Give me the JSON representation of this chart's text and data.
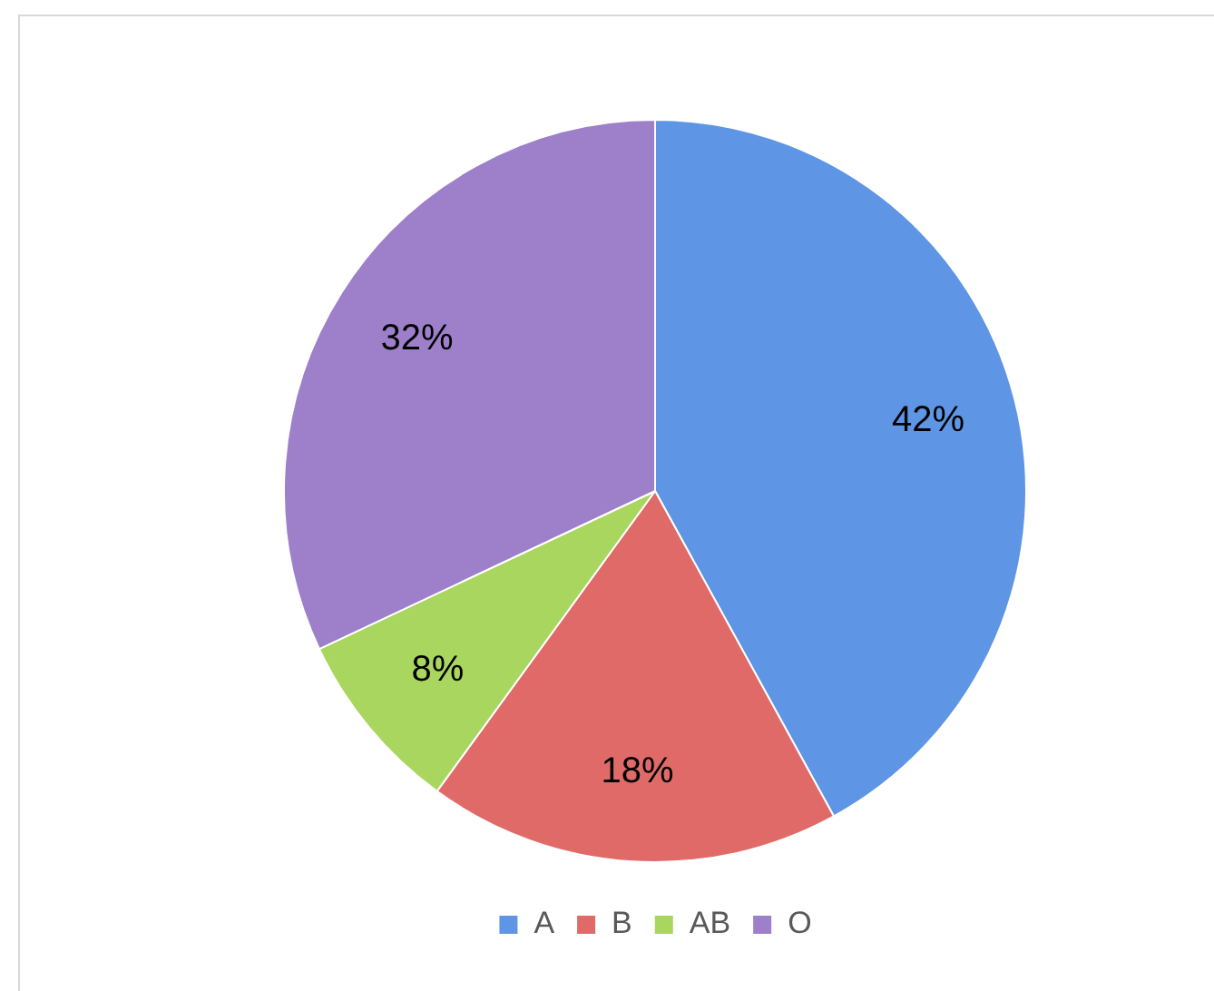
{
  "chart_data": {
    "type": "pie",
    "categories": [
      "A",
      "B",
      "AB",
      "O"
    ],
    "values": [
      42,
      18,
      8,
      32
    ],
    "colors": [
      "#5e95e4",
      "#e06a68",
      "#a9d65e",
      "#9d7fca"
    ],
    "value_labels": [
      "42%",
      "18%",
      "8%",
      "32%"
    ],
    "legend": "bottom"
  }
}
